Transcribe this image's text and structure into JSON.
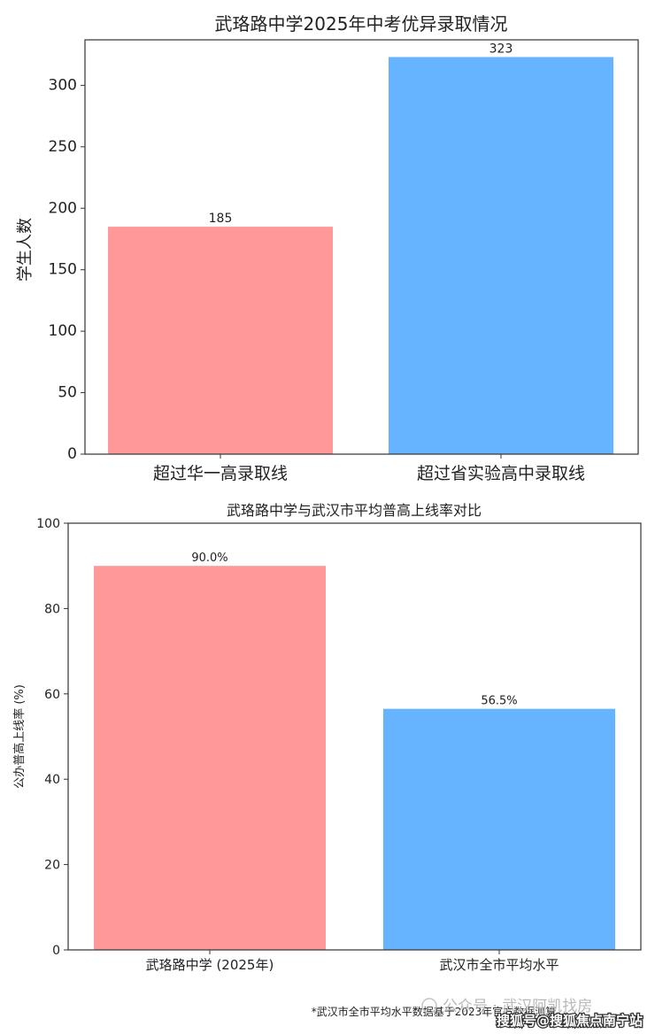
{
  "chart_data": [
    {
      "type": "bar",
      "title": "武珞路中学2025年中考优异录取情况",
      "ylabel": "学生人数",
      "xlabel": "",
      "categories": [
        "超过华一高录取线",
        "超过省实验高中录取线"
      ],
      "values": [
        185,
        323
      ],
      "value_labels": [
        "185",
        "323"
      ],
      "ylim": [
        0,
        337
      ],
      "yticks": [
        0,
        50,
        100,
        150,
        200,
        250,
        300
      ],
      "ytick_labels": [
        "0",
        "50",
        "100",
        "150",
        "200",
        "250",
        "300"
      ],
      "colors": [
        "#ff9999",
        "#66b3ff"
      ],
      "grid": false
    },
    {
      "type": "bar",
      "title": "武珞路中学与武汉市平均普高上线率对比",
      "ylabel": "公办普高上线率 (%)",
      "xlabel": "",
      "categories": [
        "武珞路中学 (2025年)",
        "武汉市全市平均水平"
      ],
      "values": [
        90.0,
        56.5
      ],
      "value_labels": [
        "90.0%",
        "56.5%"
      ],
      "ylim": [
        0,
        100
      ],
      "yticks": [
        0,
        20,
        40,
        60,
        80,
        100
      ],
      "ytick_labels": [
        "0",
        "20",
        "40",
        "60",
        "80",
        "100"
      ],
      "colors": [
        "#ff9999",
        "#66b3ff"
      ],
      "grid": false
    }
  ],
  "footnote": "*武汉市全市平均水平数据基于2023年官方数据测算",
  "watermark": {
    "wechat": "公众号 · 武汉阿凯找房",
    "sohu": "搜狐号@搜狐焦点南宁站"
  }
}
